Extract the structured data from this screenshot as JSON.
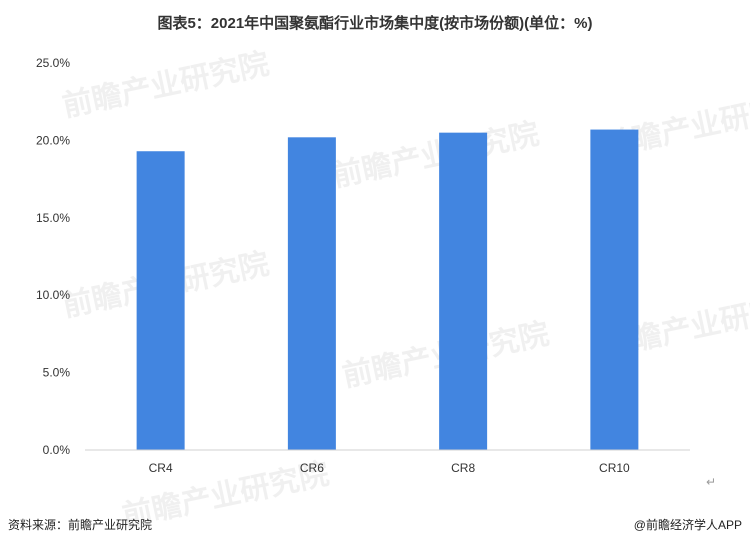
{
  "chart_data": {
    "type": "bar",
    "title": "图表5：2021年中国聚氨酯行业市场集中度(按市场份额)(单位：%)",
    "categories": [
      "CR4",
      "CR6",
      "CR8",
      "CR10"
    ],
    "values": [
      19.3,
      20.2,
      20.5,
      20.7
    ],
    "ylim": [
      0,
      25
    ],
    "yticks": [
      0,
      5,
      10,
      15,
      20,
      25
    ],
    "ytick_labels": [
      "0.0%",
      "5.0%",
      "10.0%",
      "15.0%",
      "20.0%",
      "25.0%"
    ],
    "xlabel": "",
    "ylabel": "",
    "grid": false,
    "legend": "none",
    "bar_color": "#4285e0",
    "axis_color": "#d0d0d0",
    "tick_label_color": "#333333"
  },
  "watermark_text": "前瞻产业研究院",
  "footer": {
    "source": "资料来源：前瞻产业研究院",
    "brand": "@前瞻经济学人APP"
  },
  "return_mark": "↵"
}
